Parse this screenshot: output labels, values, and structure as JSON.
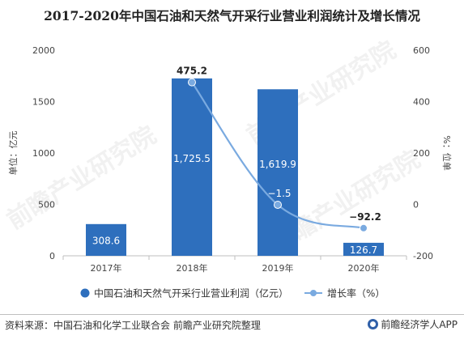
{
  "title": "2017-2020年中国石油和天然气开采行业营业利润统计及增长情况",
  "watermark": "前瞻产业研究院",
  "chart_data": {
    "type": "bar",
    "categories": [
      "2017年",
      "2018年",
      "2019年",
      "2020年"
    ],
    "series": [
      {
        "name": "中国石油和天然气开采行业营业利润（亿元）",
        "type": "bar",
        "axis": "left",
        "values": [
          308.6,
          1725.5,
          1619.9,
          126.7
        ],
        "labels": [
          "308.6",
          "1,725.5",
          "1,619.9",
          "126.7"
        ],
        "color": "#2e6fbd"
      },
      {
        "name": "增长率（%）",
        "type": "line",
        "axis": "right",
        "x": [
          "2018年",
          "2019年",
          "2020年"
        ],
        "values": [
          475.2,
          -1.5,
          -92.2
        ],
        "labels": [
          "475.2",
          "−1.5",
          "−92.2"
        ],
        "color": "#7aaae0"
      }
    ],
    "ylabel": "单位：亿元",
    "y2label": "%：位单",
    "ylim": [
      0,
      2000
    ],
    "yticks": [
      "0",
      "500",
      "1000",
      "1500",
      "2000"
    ],
    "y2lim": [
      -200,
      600
    ],
    "y2ticks": [
      "-200",
      "0",
      "200",
      "400",
      "600"
    ],
    "legend_position": "bottom",
    "grid": false
  },
  "footer": {
    "source": "资料来源：中国石油和化学工业联合会 前瞻产业研究院整理",
    "brand": "前瞻经济学人APP"
  }
}
